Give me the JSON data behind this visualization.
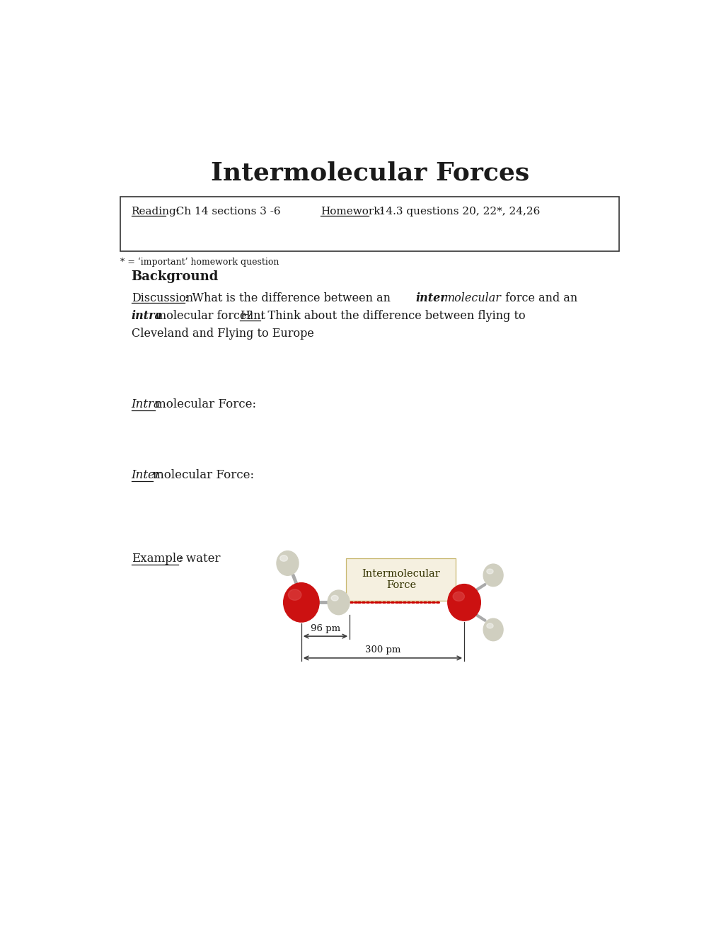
{
  "title": "Intermolecular Forces",
  "reading_label": "Reading:",
  "reading_text": "   Ch 14 sections 3 -6",
  "homework_label": "Homework:",
  "homework_text": "   14.3 questions 20, 22*, 24,26",
  "footnote": "* = ‘important’ homework question",
  "background_section": "Background",
  "bg_color": "#ffffff",
  "text_color": "#1a1a1a",
  "box_bg": "#f5f0e0",
  "dotted_line_color": "#cc0000",
  "atom_red": "#cc1111",
  "atom_gray": "#d0cfc0",
  "arrow_color": "#333333",
  "inter_force_box_text": "Intermolecular\nForce"
}
